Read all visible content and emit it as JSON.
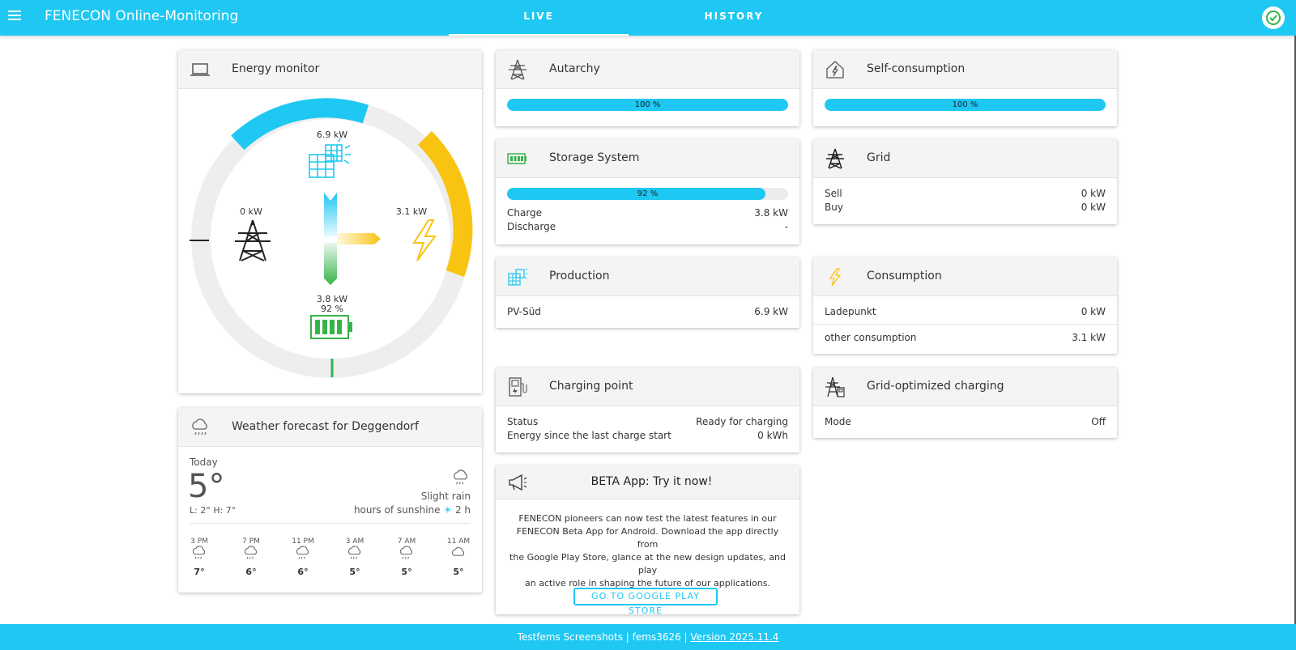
{
  "header": {
    "title": "FENECON Online-Monitoring",
    "tabs": [
      {
        "label": "LIVE",
        "active": true
      },
      {
        "label": "HISTORY",
        "active": false
      }
    ],
    "accent_color": "#1ec8f2",
    "status_icon": "check-circle-icon"
  },
  "energy_monitor": {
    "title": "Energy monitor",
    "production": "6.9 kW",
    "grid": "0 kW",
    "consumption": "3.1 kW",
    "storage_power": "3.8 kW",
    "storage_soc": "92 %",
    "colors": {
      "production": "#1ec8f2",
      "consumption": "#f9c312",
      "storage": "#36b449",
      "grid": "#222222"
    }
  },
  "weather": {
    "title": "Weather forecast for Deggendorf",
    "today_label": "Today",
    "temp": "5°",
    "low_high": "L: 2° H: 7°",
    "condition": "Slight rain",
    "sunshine_label": "hours of sunshine",
    "sunshine_value": "2 h",
    "hours": [
      {
        "time": "3 PM",
        "temp": "7°",
        "icon": "rain-cloud-icon"
      },
      {
        "time": "7 PM",
        "temp": "6°",
        "icon": "rain-cloud-icon"
      },
      {
        "time": "11 PM",
        "temp": "6°",
        "icon": "rain-cloud-icon"
      },
      {
        "time": "3 AM",
        "temp": "5°",
        "icon": "rain-cloud-icon"
      },
      {
        "time": "7 AM",
        "temp": "5°",
        "icon": "rain-cloud-icon"
      },
      {
        "time": "11 AM",
        "temp": "5°",
        "icon": "cloud-icon"
      }
    ]
  },
  "autarchy": {
    "title": "Autarchy",
    "value_label": "100 %",
    "value": 1.0
  },
  "self_consumption": {
    "title": "Self-consumption",
    "value_label": "100 %",
    "value": 1.0
  },
  "storage": {
    "title": "Storage System",
    "soc_label": "92 %",
    "soc": 0.92,
    "charge_label": "Charge",
    "charge_value": "3.8 kW",
    "discharge_label": "Discharge",
    "discharge_value": "-"
  },
  "grid": {
    "title": "Grid",
    "sell_label": "Sell",
    "sell_value": "0 kW",
    "buy_label": "Buy",
    "buy_value": "0 kW"
  },
  "production": {
    "title": "Production",
    "item_label": "PV-Süd",
    "item_value": "6.9 kW"
  },
  "consumption": {
    "title": "Consumption",
    "items": [
      {
        "label": "Ladepunkt",
        "value": "0 kW"
      },
      {
        "label": "other consumption",
        "value": "3.1 kW"
      }
    ]
  },
  "charging_point": {
    "title": "Charging point",
    "status_label": "Status",
    "status_value": "Ready for charging",
    "energy_label": "Energy since the last charge start",
    "energy_value": "0 kWh"
  },
  "grid_optimized": {
    "title": "Grid-optimized charging",
    "mode_label": "Mode",
    "mode_value": "Off"
  },
  "beta": {
    "title": "BETA App: Try it now!",
    "lines": [
      "FENECON pioneers can now test the latest features in our",
      "FENECON Beta App for Android. Download the app directly from",
      "the Google Play Store, glance at the new design updates, and play",
      "an active role in shaping the future of our applications."
    ],
    "button": "GO TO GOOGLE PLAY STORE"
  },
  "footer": {
    "text": "Testfems Screenshots | fems3626 | ",
    "version": "Version 2025.11.4"
  }
}
